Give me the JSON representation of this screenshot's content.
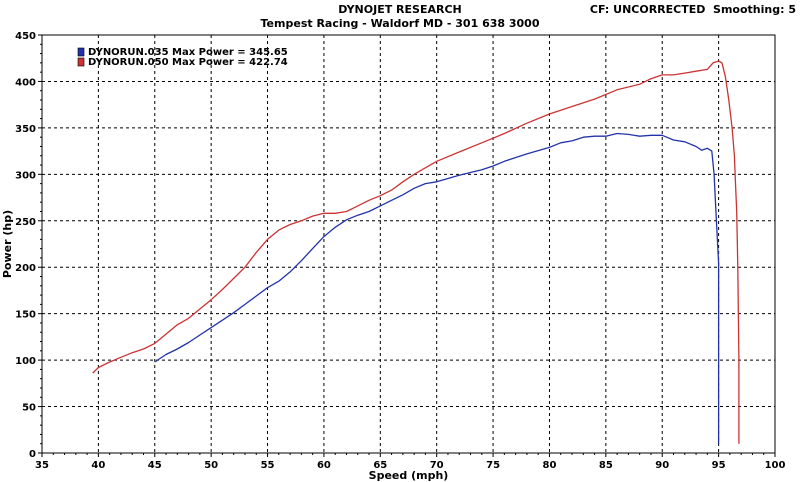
{
  "header": {
    "title": "DYNOJET RESEARCH",
    "subtitle": "Tempest Racing - Waldorf MD - 301 638 3000",
    "cf_label": "CF: UNCORRECTED",
    "smoothing_label": "Smoothing: 5"
  },
  "chart_data": {
    "type": "line",
    "xlabel": "Speed (mph)",
    "ylabel": "Power (hp)",
    "xlim": [
      35,
      100
    ],
    "ylim": [
      0,
      450
    ],
    "xticks": [
      35,
      40,
      45,
      50,
      55,
      60,
      65,
      70,
      75,
      80,
      85,
      90,
      95,
      100
    ],
    "yticks": [
      0,
      50,
      100,
      150,
      200,
      250,
      300,
      350,
      400,
      450
    ],
    "grid": true,
    "legend_position": "top-left",
    "series": [
      {
        "name": "DYNORUN.035 Max Power = 345.65",
        "color": "#2233aa",
        "x": [
          45,
          46,
          47,
          48,
          49,
          50,
          51,
          52,
          53,
          54,
          55,
          56,
          57,
          58,
          59,
          60,
          61,
          62,
          63,
          64,
          65,
          66,
          67,
          68,
          69,
          70,
          72,
          74,
          75,
          76,
          78,
          80,
          81,
          82,
          83,
          84,
          85,
          86,
          87,
          88,
          89,
          90,
          91,
          92,
          93,
          93.5,
          94,
          94.4,
          94.6,
          94.8,
          95.0,
          95.0,
          95.0
        ],
        "y": [
          98,
          106,
          112,
          119,
          127,
          135,
          143,
          151,
          160,
          169,
          178,
          185,
          195,
          207,
          220,
          233,
          243,
          251,
          256,
          260,
          266,
          272,
          278,
          285,
          290,
          292,
          299,
          305,
          309,
          314,
          322,
          329,
          334,
          336,
          340,
          341,
          341,
          344,
          343,
          341,
          342,
          342,
          337,
          335,
          330,
          326,
          328,
          325,
          300,
          250,
          205,
          100,
          10
        ]
      },
      {
        "name": "DYNORUN.050 Max Power = 422.74",
        "color": "#cc3333",
        "x": [
          39.5,
          40,
          41,
          42,
          43,
          44,
          45,
          46,
          47,
          48,
          49,
          50,
          51,
          52,
          53,
          54,
          55,
          56,
          57,
          58,
          59,
          60,
          61,
          62,
          63,
          64,
          65,
          66,
          67,
          68,
          69,
          70,
          72,
          74,
          76,
          78,
          80,
          82,
          84,
          86,
          88,
          89,
          90,
          91,
          92,
          93,
          94,
          94.5,
          95,
          95.3,
          95.6,
          95.9,
          96.2,
          96.4,
          96.5,
          96.6,
          96.7,
          96.8,
          96.8
        ],
        "y": [
          86,
          92,
          98,
          103,
          108,
          112,
          118,
          128,
          138,
          145,
          155,
          165,
          176,
          188,
          200,
          216,
          230,
          240,
          246,
          250,
          255,
          258,
          258,
          260,
          266,
          272,
          277,
          283,
          292,
          300,
          307,
          314,
          324,
          334,
          344,
          355,
          365,
          373,
          381,
          391,
          397,
          403,
          407,
          407,
          409,
          411,
          413,
          420,
          422,
          420,
          405,
          380,
          350,
          320,
          290,
          260,
          200,
          100,
          10
        ]
      }
    ]
  }
}
